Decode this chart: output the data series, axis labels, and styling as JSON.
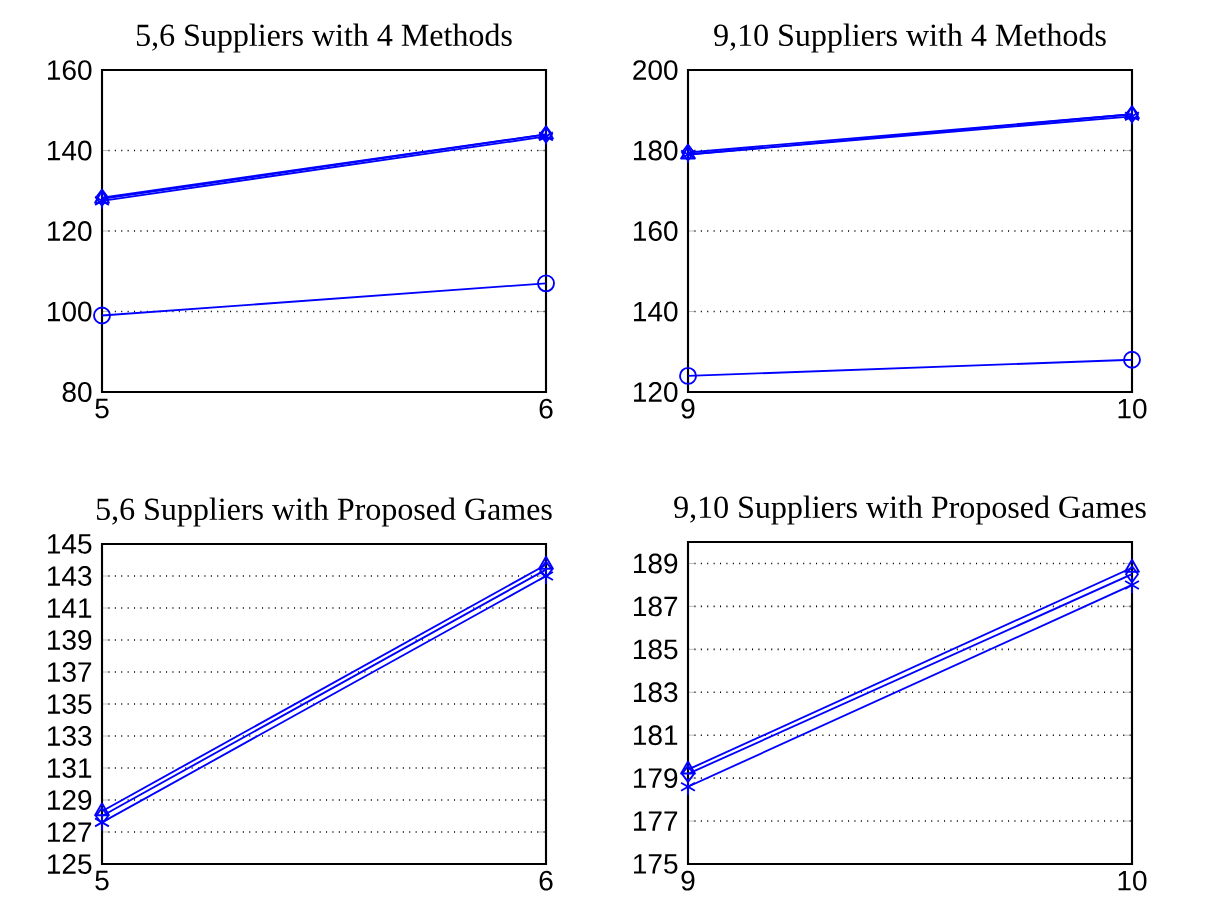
{
  "chart_data": [
    {
      "type": "line",
      "title": "5,6 Suppliers with 4 Methods",
      "x": [
        5,
        6
      ],
      "xlim": [
        5,
        6
      ],
      "xticks": [
        5,
        6
      ],
      "ylim": [
        80,
        160
      ],
      "yticks": [
        80,
        100,
        120,
        140,
        160
      ],
      "grid": "y",
      "series": [
        {
          "color": "#0000ff",
          "marker": "circle",
          "values": [
            99,
            107
          ]
        },
        {
          "color": "#0000ff",
          "marker": "triangle",
          "values": [
            128,
            144
          ]
        },
        {
          "color": "#0000ff",
          "marker": "cross",
          "values": [
            127.5,
            143.5
          ]
        },
        {
          "color": "#0000ff",
          "marker": "diamond",
          "values": [
            128.3,
            144
          ]
        }
      ]
    },
    {
      "type": "line",
      "title": "9,10 Suppliers with 4 Methods",
      "x": [
        9,
        10
      ],
      "xlim": [
        9,
        10
      ],
      "xticks": [
        9,
        10
      ],
      "ylim": [
        120,
        200
      ],
      "yticks": [
        120,
        140,
        160,
        180,
        200
      ],
      "grid": "y",
      "series": [
        {
          "color": "#0000ff",
          "marker": "circle",
          "values": [
            124,
            128
          ]
        },
        {
          "color": "#0000ff",
          "marker": "triangle",
          "values": [
            179,
            189
          ]
        },
        {
          "color": "#0000ff",
          "marker": "cross",
          "values": [
            179,
            188.5
          ]
        },
        {
          "color": "#0000ff",
          "marker": "diamond",
          "values": [
            179.5,
            189
          ]
        }
      ]
    },
    {
      "type": "line",
      "title": "5,6 Suppliers with Proposed Games",
      "x": [
        5,
        6
      ],
      "xlim": [
        5,
        6
      ],
      "xticks": [
        5,
        6
      ],
      "ylim": [
        125,
        145
      ],
      "yticks": [
        125,
        127,
        129,
        131,
        133,
        135,
        137,
        139,
        141,
        143,
        145
      ],
      "grid": "y",
      "series": [
        {
          "color": "#0000ff",
          "marker": "triangle",
          "values": [
            128.3,
            143.7
          ]
        },
        {
          "color": "#0000ff",
          "marker": "diamond",
          "values": [
            128,
            143.4
          ]
        },
        {
          "color": "#0000ff",
          "marker": "cross",
          "values": [
            127.6,
            143
          ]
        }
      ]
    },
    {
      "type": "line",
      "title": "9,10 Suppliers with Proposed Games",
      "x": [
        9,
        10
      ],
      "xlim": [
        9,
        10
      ],
      "xticks": [
        9,
        10
      ],
      "ylim": [
        175,
        190
      ],
      "yticks": [
        175,
        177,
        179,
        181,
        183,
        185,
        187,
        189
      ],
      "grid": "y",
      "series": [
        {
          "color": "#0000ff",
          "marker": "triangle",
          "values": [
            179.4,
            188.8
          ]
        },
        {
          "color": "#0000ff",
          "marker": "diamond",
          "values": [
            179.2,
            188.5
          ]
        },
        {
          "color": "#0000ff",
          "marker": "cross",
          "values": [
            178.6,
            188
          ]
        }
      ]
    }
  ]
}
